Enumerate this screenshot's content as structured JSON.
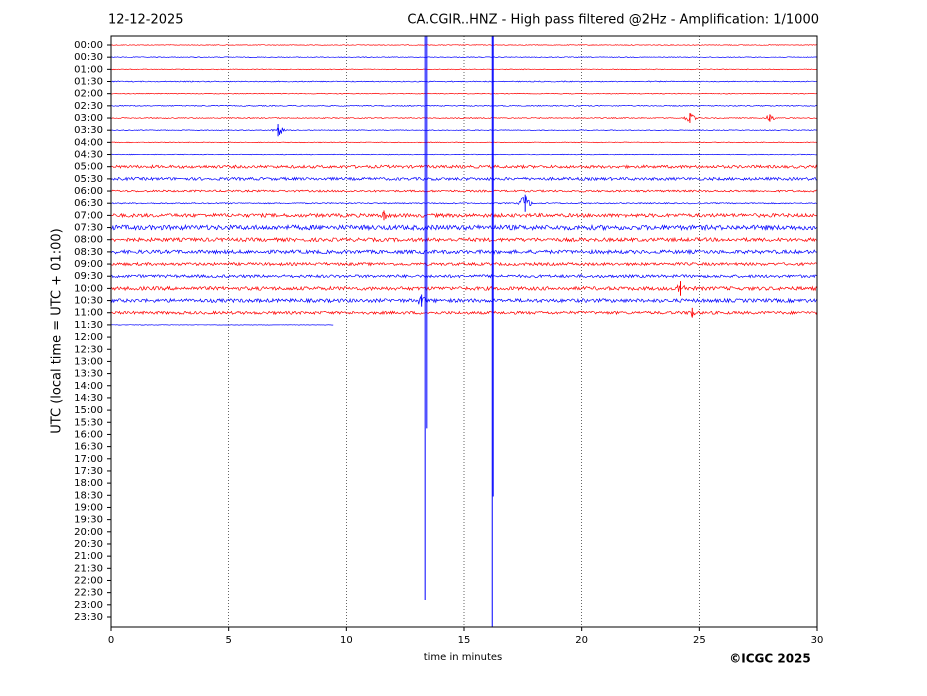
{
  "chart_data": {
    "type": "helicorder",
    "date": "12-12-2025",
    "title": "CA.CGIR..HNZ - High pass filtered @2Hz - Amplification: 1/1000",
    "ylabel": "UTC (local time = UTC + 01:00)",
    "xlabel": "time in minutes",
    "credit": "©ICGC 2025",
    "xlim": [
      0,
      30
    ],
    "xticks": [
      0,
      5,
      10,
      15,
      20,
      25,
      30
    ],
    "grid": true,
    "colors": [
      "#ff0000",
      "#0000ff"
    ],
    "categories": [
      "00:00",
      "00:30",
      "01:00",
      "01:30",
      "02:00",
      "02:30",
      "03:00",
      "03:30",
      "04:00",
      "04:30",
      "05:00",
      "05:30",
      "06:00",
      "06:30",
      "07:00",
      "07:30",
      "08:00",
      "08:30",
      "09:00",
      "09:30",
      "10:00",
      "10:30",
      "11:00",
      "11:30",
      "12:00",
      "12:30",
      "13:00",
      "13:30",
      "14:00",
      "14:30",
      "15:00",
      "15:30",
      "16:00",
      "16:30",
      "17:00",
      "17:30",
      "18:00",
      "18:30",
      "19:00",
      "19:30",
      "20:00",
      "20:30",
      "21:00",
      "21:30",
      "22:00",
      "22:30",
      "23:00",
      "23:30"
    ],
    "rows": [
      {
        "end": 30,
        "amplitude": 0.03
      },
      {
        "end": 30,
        "amplitude": 0.03
      },
      {
        "end": 30,
        "amplitude": 0.03
      },
      {
        "end": 30,
        "amplitude": 0.04
      },
      {
        "end": 30,
        "amplitude": 0.03
      },
      {
        "end": 30,
        "amplitude": 0.04
      },
      {
        "end": 30,
        "amplitude": 0.04
      },
      {
        "end": 30,
        "amplitude": 0.03
      },
      {
        "end": 30,
        "amplitude": 0.03
      },
      {
        "end": 30,
        "amplitude": 0.03
      },
      {
        "end": 30,
        "amplitude": 0.12
      },
      {
        "end": 30,
        "amplitude": 0.12
      },
      {
        "end": 30,
        "amplitude": 0.08
      },
      {
        "end": 30,
        "amplitude": 0.05
      },
      {
        "end": 30,
        "amplitude": 0.15
      },
      {
        "end": 30,
        "amplitude": 0.2
      },
      {
        "end": 30,
        "amplitude": 0.15
      },
      {
        "end": 30,
        "amplitude": 0.15
      },
      {
        "end": 30,
        "amplitude": 0.12
      },
      {
        "end": 30,
        "amplitude": 0.12
      },
      {
        "end": 30,
        "amplitude": 0.15
      },
      {
        "end": 30,
        "amplitude": 0.15
      },
      {
        "end": 30,
        "amplitude": 0.12
      },
      {
        "end": 9.45,
        "amplitude": 0.02
      }
    ],
    "events": [
      {
        "row": 6,
        "x": 28,
        "amplitude": 0.3
      },
      {
        "row": 6,
        "x": 24.6,
        "amplitude": 0.4
      },
      {
        "row": 7,
        "x": 7.1,
        "amplitude": 0.5
      },
      {
        "row": 13,
        "x": 17.6,
        "amplitude": 0.7
      },
      {
        "row": 14,
        "x": 11.6,
        "amplitude": 0.4
      },
      {
        "row": 20,
        "x": 24.2,
        "amplitude": 0.6
      },
      {
        "row": 21,
        "x": 13.2,
        "amplitude": 0.5
      },
      {
        "row": 22,
        "x": 24.7,
        "amplitude": 0.4
      }
    ],
    "spikes": [
      {
        "x": 13.35,
        "to": 45.6
      },
      {
        "x": 13.42,
        "to": 31.5
      },
      {
        "x": 16.2,
        "to": 47.8
      },
      {
        "x": 16.24,
        "to": 37.1
      }
    ]
  }
}
